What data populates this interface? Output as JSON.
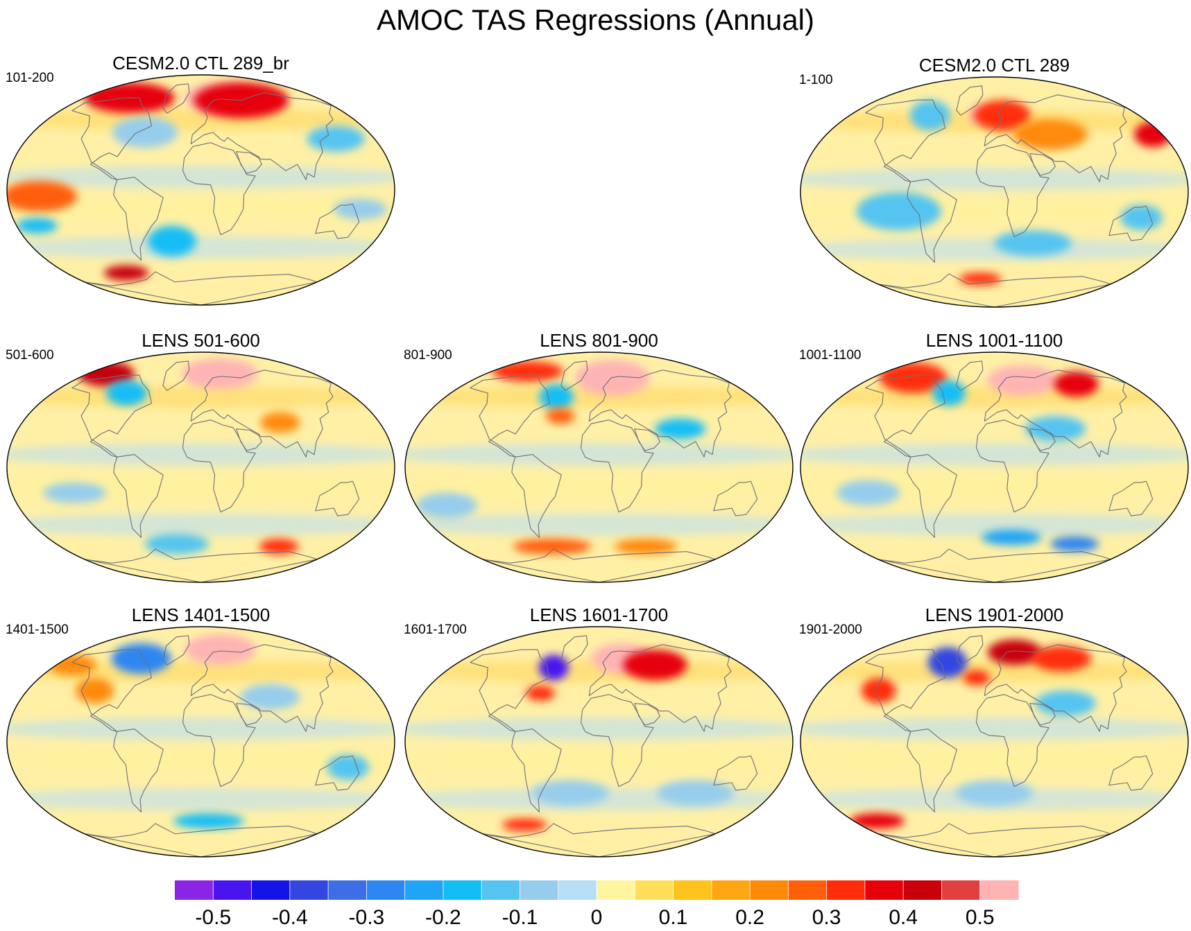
{
  "title": "AMOC TAS Regressions (Annual)",
  "panels": [
    {
      "id": "cesm-br",
      "title": "CESM2.0 CTL 289_br",
      "period": "101-200",
      "anomalies": [
        {
          "lon": -110,
          "lat": 72,
          "rx": 70,
          "ry": 12,
          "v": 0.35
        },
        {
          "lon": 30,
          "lat": 72,
          "rx": 55,
          "ry": 12,
          "v": 0.5
        },
        {
          "lon": 60,
          "lat": 70,
          "rx": 70,
          "ry": 14,
          "v": 0.35
        },
        {
          "lon": -150,
          "lat": -5,
          "rx": 35,
          "ry": 12,
          "v": 0.25
        },
        {
          "lon": -160,
          "lat": -28,
          "rx": 20,
          "ry": 6,
          "v": -0.2
        },
        {
          "lon": -100,
          "lat": -65,
          "rx": 30,
          "ry": 6,
          "v": 0.4
        },
        {
          "lon": -30,
          "lat": -40,
          "rx": 25,
          "ry": 12,
          "v": -0.2
        },
        {
          "lon": -60,
          "lat": 45,
          "rx": 35,
          "ry": 12,
          "v": -0.1
        },
        {
          "lon": 140,
          "lat": 40,
          "rx": 30,
          "ry": 10,
          "v": -0.15
        },
        {
          "lon": 150,
          "lat": -15,
          "rx": 25,
          "ry": 8,
          "v": -0.1
        }
      ]
    },
    {
      "id": "cesm",
      "title": "CESM2.0 CTL 289",
      "period": "1-100",
      "anomalies": [
        {
          "lon": -20,
          "lat": 60,
          "rx": 12,
          "ry": 7,
          "v": 0.5
        },
        {
          "lon": 10,
          "lat": 60,
          "rx": 35,
          "ry": 12,
          "v": 0.3
        },
        {
          "lon": 60,
          "lat": 45,
          "rx": 40,
          "ry": 12,
          "v": 0.2
        },
        {
          "lon": 170,
          "lat": 45,
          "rx": 20,
          "ry": 10,
          "v": 0.35
        },
        {
          "lon": -80,
          "lat": 60,
          "rx": 25,
          "ry": 12,
          "v": -0.15
        },
        {
          "lon": -90,
          "lat": -15,
          "rx": 40,
          "ry": 15,
          "v": -0.15
        },
        {
          "lon": 40,
          "lat": -40,
          "rx": 40,
          "ry": 10,
          "v": -0.15
        },
        {
          "lon": 140,
          "lat": -20,
          "rx": 20,
          "ry": 10,
          "v": -0.15
        },
        {
          "lon": -20,
          "lat": -68,
          "rx": 30,
          "ry": 5,
          "v": 0.3
        }
      ]
    },
    {
      "id": "lens-501",
      "title": "LENS 501-600",
      "period": "501-600",
      "anomalies": [
        {
          "lon": -150,
          "lat": 73,
          "rx": 45,
          "ry": 10,
          "v": 0.4
        },
        {
          "lon": 30,
          "lat": 73,
          "rx": 60,
          "ry": 12,
          "v": 0.5
        },
        {
          "lon": -90,
          "lat": 58,
          "rx": 25,
          "ry": 10,
          "v": -0.2
        },
        {
          "lon": -30,
          "lat": -60,
          "rx": 40,
          "ry": 8,
          "v": -0.15
        },
        {
          "lon": 100,
          "lat": -62,
          "rx": 25,
          "ry": 6,
          "v": 0.3
        },
        {
          "lon": -120,
          "lat": -20,
          "rx": 30,
          "ry": 8,
          "v": -0.1
        },
        {
          "lon": 80,
          "lat": 35,
          "rx": 20,
          "ry": 8,
          "v": 0.2
        }
      ]
    },
    {
      "id": "lens-801",
      "title": "LENS 801-900",
      "period": "801-900",
      "anomalies": [
        {
          "lon": 20,
          "lat": 70,
          "rx": 55,
          "ry": 14,
          "v": 0.5
        },
        {
          "lon": -120,
          "lat": 75,
          "rx": 60,
          "ry": 8,
          "v": 0.3
        },
        {
          "lon": -50,
          "lat": 55,
          "rx": 20,
          "ry": 10,
          "v": -0.2
        },
        {
          "lon": -40,
          "lat": 40,
          "rx": 15,
          "ry": 6,
          "v": 0.25
        },
        {
          "lon": 80,
          "lat": 30,
          "rx": 25,
          "ry": 8,
          "v": -0.2
        },
        {
          "lon": -60,
          "lat": -62,
          "rx": 50,
          "ry": 6,
          "v": 0.25
        },
        {
          "lon": 60,
          "lat": -62,
          "rx": 40,
          "ry": 6,
          "v": 0.2
        },
        {
          "lon": -150,
          "lat": -30,
          "rx": 30,
          "ry": 10,
          "v": -0.1
        }
      ]
    },
    {
      "id": "lens-1001",
      "title": "LENS 1001-1100",
      "period": "1001-1100",
      "anomalies": [
        {
          "lon": 40,
          "lat": 68,
          "rx": 50,
          "ry": 12,
          "v": 0.5
        },
        {
          "lon": -120,
          "lat": 70,
          "rx": 50,
          "ry": 12,
          "v": 0.3
        },
        {
          "lon": -55,
          "lat": 58,
          "rx": 20,
          "ry": 10,
          "v": -0.2
        },
        {
          "lon": 110,
          "lat": 65,
          "rx": 30,
          "ry": 10,
          "v": 0.35
        },
        {
          "lon": 60,
          "lat": 30,
          "rx": 30,
          "ry": 10,
          "v": -0.15
        },
        {
          "lon": 20,
          "lat": -55,
          "rx": 35,
          "ry": 6,
          "v": -0.25
        },
        {
          "lon": 100,
          "lat": -60,
          "rx": 30,
          "ry": 6,
          "v": -0.3
        },
        {
          "lon": -120,
          "lat": -20,
          "rx": 30,
          "ry": 10,
          "v": -0.1
        }
      ]
    },
    {
      "id": "lens-1401",
      "title": "LENS 1401-1500",
      "period": "1401-1500",
      "anomalies": [
        {
          "lon": -80,
          "lat": 65,
          "rx": 40,
          "ry": 12,
          "v": -0.3
        },
        {
          "lon": 30,
          "lat": 72,
          "rx": 55,
          "ry": 12,
          "v": 0.5
        },
        {
          "lon": -110,
          "lat": 40,
          "rx": 20,
          "ry": 10,
          "v": 0.2
        },
        {
          "lon": 70,
          "lat": 35,
          "rx": 30,
          "ry": 10,
          "v": -0.1
        },
        {
          "lon": 10,
          "lat": -62,
          "rx": 45,
          "ry": 6,
          "v": -0.2
        },
        {
          "lon": 140,
          "lat": -20,
          "rx": 20,
          "ry": 10,
          "v": -0.15
        },
        {
          "lon": -160,
          "lat": 60,
          "rx": 30,
          "ry": 8,
          "v": 0.2
        }
      ]
    },
    {
      "id": "lens-1601",
      "title": "LENS 1601-1700",
      "period": "1601-1700",
      "anomalies": [
        {
          "lon": -55,
          "lat": 58,
          "rx": 18,
          "ry": 10,
          "v": -0.5
        },
        {
          "lon": 30,
          "lat": 65,
          "rx": 40,
          "ry": 12,
          "v": 0.5
        },
        {
          "lon": 70,
          "lat": 60,
          "rx": 40,
          "ry": 12,
          "v": 0.35
        },
        {
          "lon": -60,
          "lat": 38,
          "rx": 15,
          "ry": 6,
          "v": 0.3
        },
        {
          "lon": -100,
          "lat": -65,
          "rx": 30,
          "ry": 5,
          "v": 0.3
        },
        {
          "lon": -30,
          "lat": -40,
          "rx": 40,
          "ry": 10,
          "v": -0.1
        },
        {
          "lon": 100,
          "lat": -40,
          "rx": 40,
          "ry": 10,
          "v": -0.1
        }
      ]
    },
    {
      "id": "lens-1901",
      "title": "LENS 1901-2000",
      "period": "1901-2000",
      "anomalies": [
        {
          "lon": -60,
          "lat": 62,
          "rx": 25,
          "ry": 12,
          "v": -0.4
        },
        {
          "lon": 30,
          "lat": 70,
          "rx": 40,
          "ry": 10,
          "v": 0.4
        },
        {
          "lon": 90,
          "lat": 65,
          "rx": 40,
          "ry": 10,
          "v": 0.3
        },
        {
          "lon": -120,
          "lat": 40,
          "rx": 18,
          "ry": 10,
          "v": 0.3
        },
        {
          "lon": -20,
          "lat": 50,
          "rx": 15,
          "ry": 6,
          "v": 0.3
        },
        {
          "lon": -150,
          "lat": -62,
          "rx": 35,
          "ry": 6,
          "v": 0.35
        },
        {
          "lon": 70,
          "lat": 30,
          "rx": 30,
          "ry": 10,
          "v": -0.15
        },
        {
          "lon": 0,
          "lat": -40,
          "rx": 40,
          "ry": 10,
          "v": -0.1
        }
      ]
    }
  ],
  "colorbar": {
    "colors": [
      "#8c24e6",
      "#4a14f0",
      "#1414e6",
      "#3346e0",
      "#3d6ee6",
      "#2e86f0",
      "#1ea5f5",
      "#14bef5",
      "#55c4f0",
      "#96cdec",
      "#b6def5",
      "#fff5a0",
      "#ffde5a",
      "#ffc31e",
      "#ffa614",
      "#ff8a0a",
      "#ff5f0a",
      "#ff2d0a",
      "#e6000a",
      "#c8000a",
      "#e04040",
      "#ffb4b4"
    ],
    "tick_labels": [
      "-0.5",
      "-0.4",
      "-0.3",
      "-0.2",
      "-0.1",
      "0",
      "0.1",
      "0.2",
      "0.3",
      "0.4",
      "0.5"
    ],
    "levels": [
      -0.5,
      -0.45,
      -0.4,
      -0.35,
      -0.3,
      -0.25,
      -0.2,
      -0.15,
      -0.1,
      -0.05,
      0,
      0.05,
      0.1,
      0.15,
      0.2,
      0.25,
      0.3,
      0.35,
      0.4,
      0.45,
      0.5
    ]
  }
}
